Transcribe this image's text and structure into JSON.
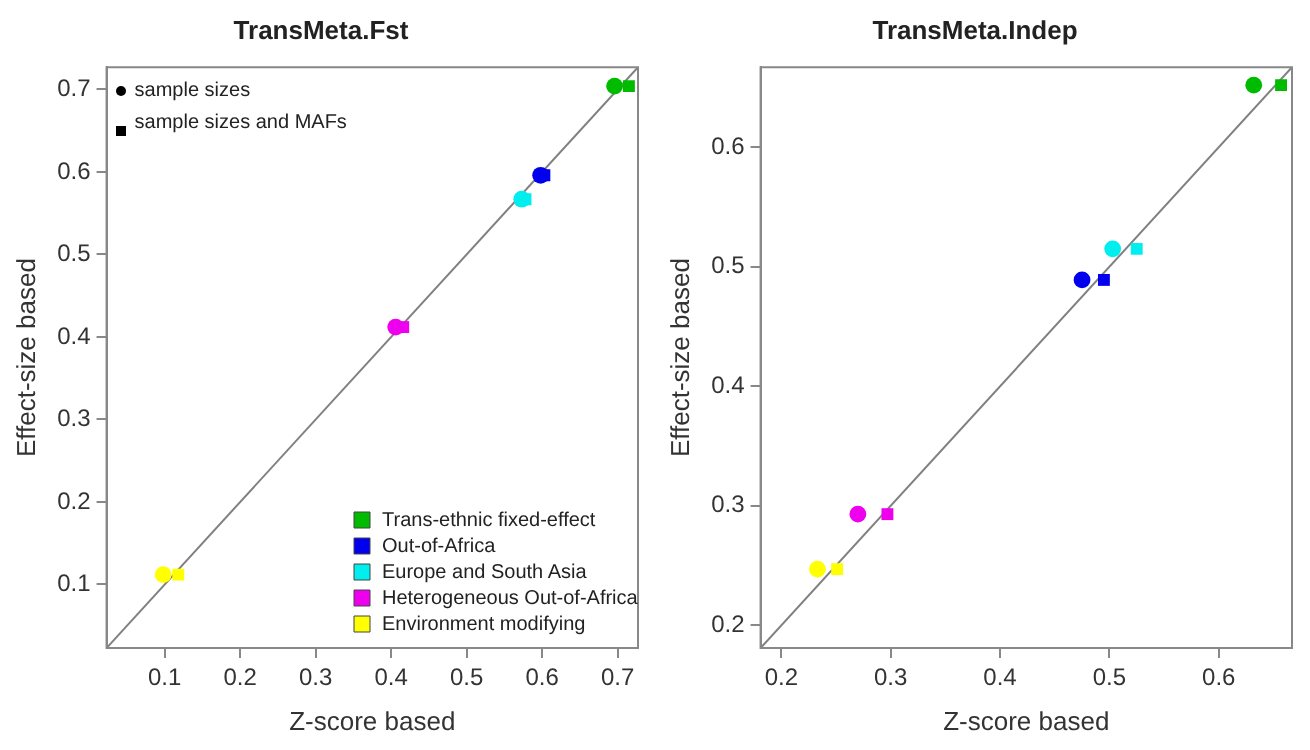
{
  "chart_data": [
    {
      "type": "scatter",
      "title": "TransMeta.Fst",
      "xlabel": "Z-score based",
      "ylabel": "Effect-size based",
      "annotations": [
        "sample sizes",
        "sample sizes and MAFs"
      ],
      "series": [
        {
          "name": "Trans-ethnic fixed-effect",
          "color": "#00bb00",
          "marker": "circle",
          "x": [
            0.696
          ],
          "values": [
            0.704
          ]
        },
        {
          "color": "#00bb00",
          "marker": "square",
          "x": [
            0.715
          ],
          "values": [
            0.704
          ]
        },
        {
          "name": "Out-of-Africa",
          "color": "#0000ee",
          "marker": "circle",
          "x": [
            0.598
          ],
          "values": [
            0.596
          ]
        },
        {
          "color": "#0000ee",
          "marker": "square",
          "x": [
            0.603
          ],
          "values": [
            0.596
          ]
        },
        {
          "name": "Europe and South Asia",
          "color": "#00eeee",
          "marker": "circle",
          "x": [
            0.573
          ],
          "values": [
            0.567
          ]
        },
        {
          "color": "#00eeee",
          "marker": "square",
          "x": [
            0.578
          ],
          "values": [
            0.567
          ]
        },
        {
          "name": "Heterogeneous Out-of-Africa",
          "color": "#ee00ee",
          "marker": "circle",
          "x": [
            0.406
          ],
          "values": [
            0.412
          ]
        },
        {
          "color": "#ee00ee",
          "marker": "square",
          "x": [
            0.416
          ],
          "values": [
            0.412
          ]
        },
        {
          "name": "Environment modifying",
          "color": "#ffff00",
          "marker": "circle",
          "x": [
            0.098
          ],
          "values": [
            0.112
          ]
        },
        {
          "color": "#ffff00",
          "marker": "square",
          "x": [
            0.118
          ],
          "values": [
            0.112
          ]
        },
        {
          "type": "line",
          "color": "#808080",
          "marker": "none",
          "x": [
            0.023,
            0.727
          ],
          "values": [
            0.023,
            0.727
          ]
        }
      ],
      "xlim": [
        0.023,
        0.727
      ],
      "ylim": [
        0.023,
        0.727
      ],
      "xticks": [
        0.1,
        0.2,
        0.3,
        0.4,
        0.5,
        0.6,
        0.7
      ],
      "yticks": [
        0.1,
        0.2,
        0.3,
        0.4,
        0.5,
        0.6,
        0.7
      ],
      "legend": "bottom right",
      "grid": false
    },
    {
      "type": "scatter",
      "title": "TransMeta.Indep",
      "xlabel": "Z-score based",
      "ylabel": "Effect-size based",
      "series": [
        {
          "color": "#00bb00",
          "marker": "circle",
          "x": [
            0.632
          ],
          "values": [
            0.652
          ]
        },
        {
          "color": "#00bb00",
          "marker": "square",
          "x": [
            0.657
          ],
          "values": [
            0.652
          ]
        },
        {
          "color": "#0000ee",
          "marker": "circle",
          "x": [
            0.475
          ],
          "values": [
            0.489
          ]
        },
        {
          "color": "#0000ee",
          "marker": "square",
          "x": [
            0.495
          ],
          "values": [
            0.489
          ]
        },
        {
          "color": "#00eeee",
          "marker": "circle",
          "x": [
            0.503
          ],
          "values": [
            0.515
          ]
        },
        {
          "color": "#00eeee",
          "marker": "square",
          "x": [
            0.525
          ],
          "values": [
            0.515
          ]
        },
        {
          "color": "#ee00ee",
          "marker": "circle",
          "x": [
            0.27
          ],
          "values": [
            0.293
          ]
        },
        {
          "color": "#ee00ee",
          "marker": "square",
          "x": [
            0.297
          ],
          "values": [
            0.293
          ]
        },
        {
          "color": "#ffff00",
          "marker": "circle",
          "x": [
            0.233
          ],
          "values": [
            0.247
          ]
        },
        {
          "color": "#ffff00",
          "marker": "square",
          "x": [
            0.251
          ],
          "values": [
            0.247
          ]
        },
        {
          "type": "line",
          "color": "#808080",
          "marker": "none",
          "x": [
            0.181,
            0.667
          ],
          "values": [
            0.181,
            0.667
          ]
        }
      ],
      "xlim": [
        0.181,
        0.667
      ],
      "ylim": [
        0.181,
        0.667
      ],
      "xticks": [
        0.2,
        0.3,
        0.4,
        0.5,
        0.6
      ],
      "yticks": [
        0.2,
        0.3,
        0.4,
        0.5,
        0.6
      ],
      "grid": false
    }
  ]
}
